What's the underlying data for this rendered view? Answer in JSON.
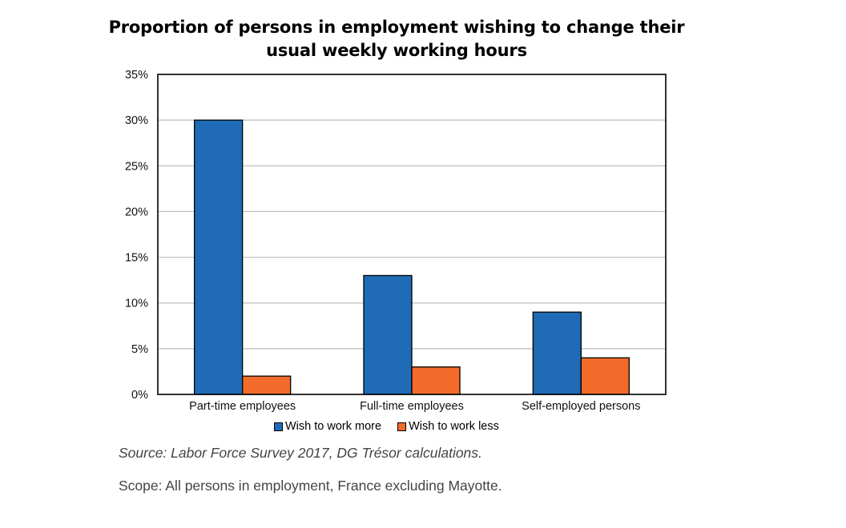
{
  "chart_data": {
    "type": "bar",
    "title": "Proportion of persons in employment wishing to change their usual weekly working hours",
    "categories": [
      "Part-time employees",
      "Full-time employees",
      "Self-employed persons"
    ],
    "series": [
      {
        "name": "Wish to work more",
        "color": "#1f6bb5",
        "values": [
          30,
          13,
          9
        ]
      },
      {
        "name": "Wish to work less",
        "color": "#f26b2a",
        "values": [
          2,
          3,
          4
        ]
      }
    ],
    "y_ticks": [
      "0%",
      "5%",
      "10%",
      "15%",
      "20%",
      "25%",
      "30%",
      "35%"
    ],
    "ylim": [
      0,
      35
    ],
    "xlabel": "",
    "ylabel": "",
    "grid": true,
    "legend_position": "bottom"
  },
  "notes": {
    "source": "Source: Labor Force Survey 2017, DG Trésor calculations.",
    "scope": "Scope: All persons in employment, France excluding Mayotte."
  }
}
